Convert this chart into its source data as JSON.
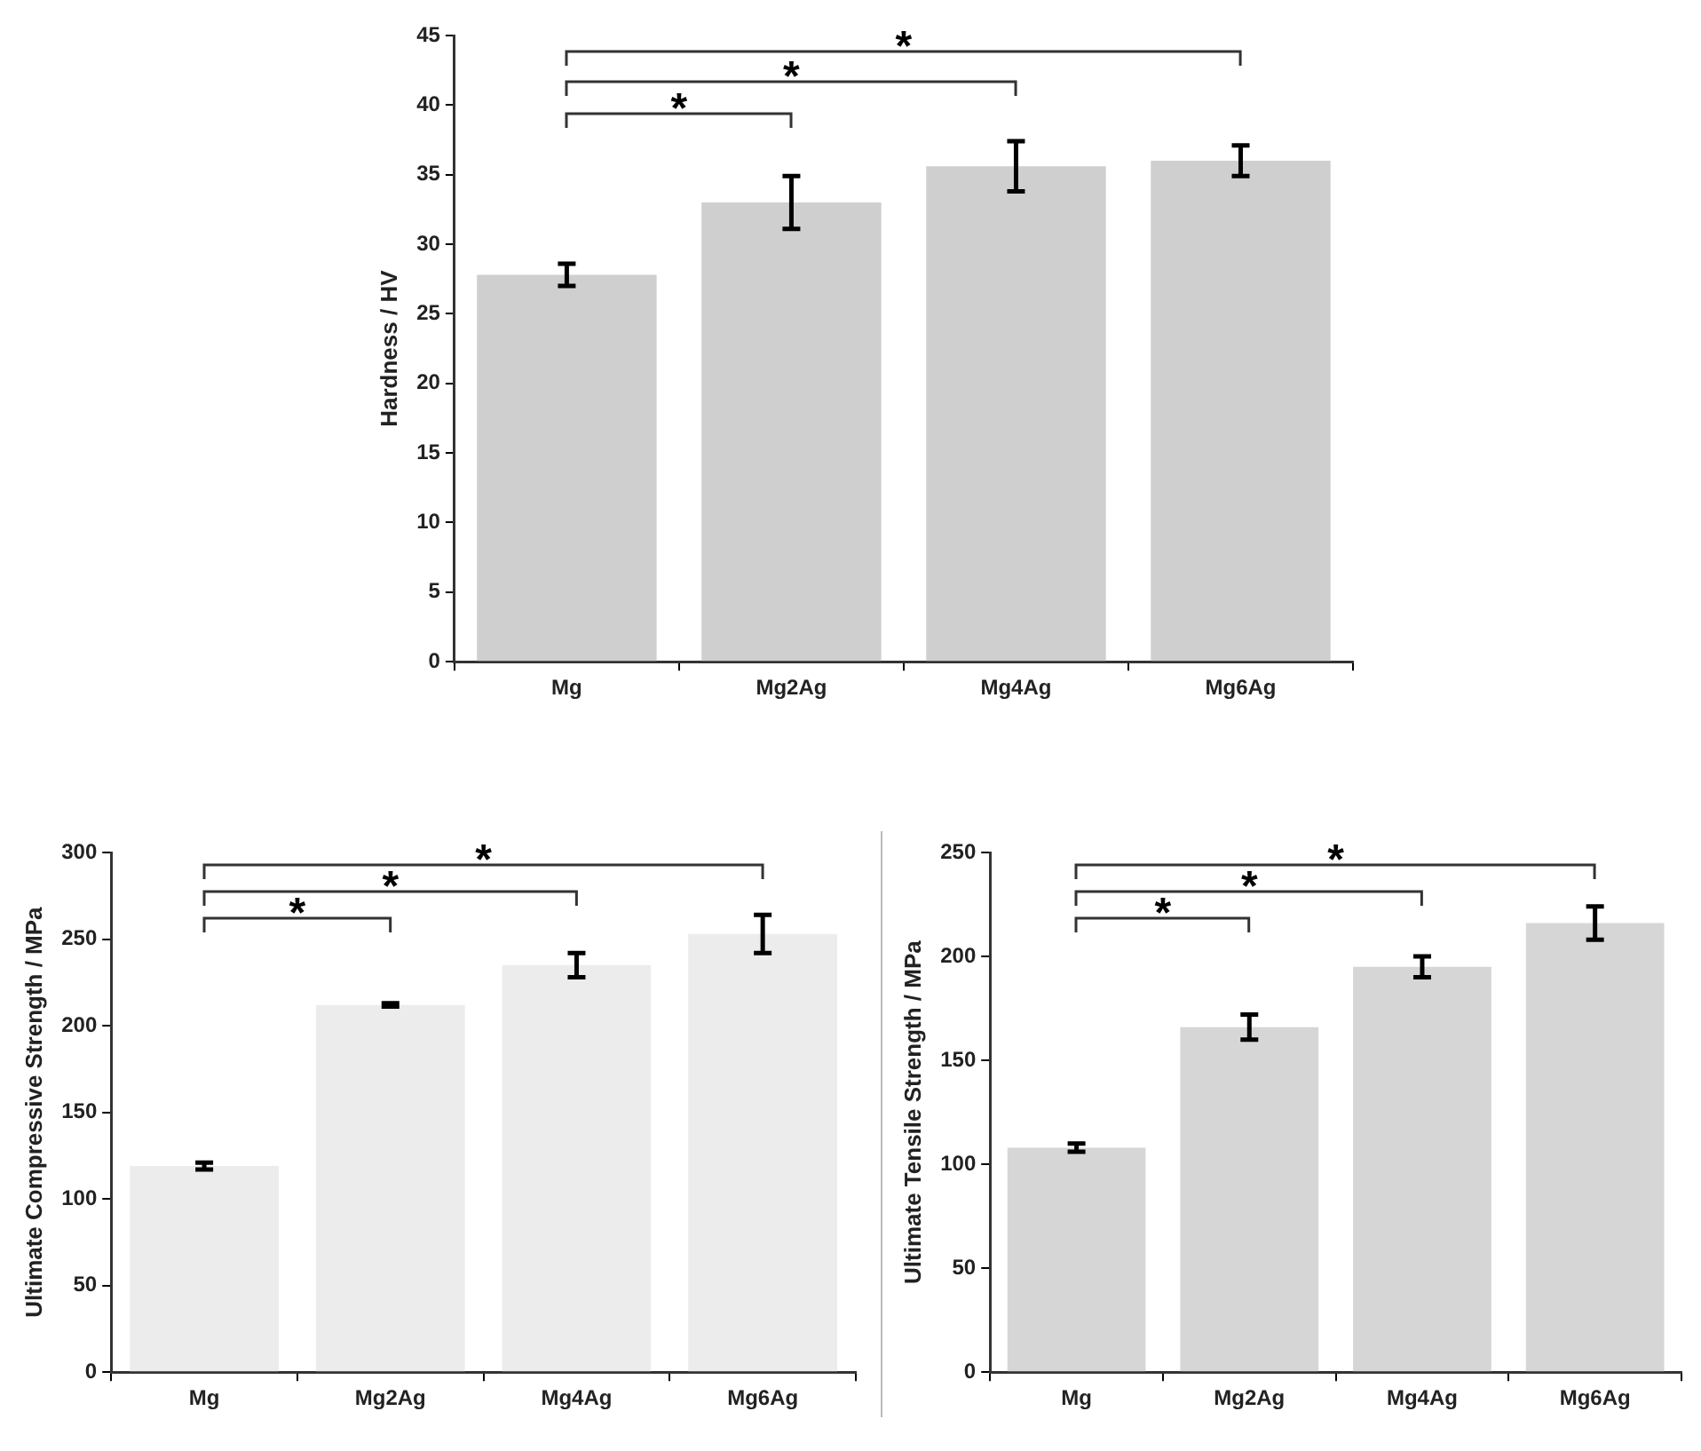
{
  "chart_data": [
    {
      "type": "bar",
      "ylabel": "Hardness / HV",
      "categories": [
        "Mg",
        "Mg2Ag",
        "Mg4Ag",
        "Mg6Ag"
      ],
      "values": [
        27.8,
        33,
        35.6,
        36
      ],
      "errors": [
        0.8,
        1.9,
        1.8,
        1.1
      ],
      "color": "#cfcfcf",
      "ylim": [
        0,
        45
      ],
      "yticks": [
        0,
        5,
        10,
        15,
        20,
        25,
        30,
        35,
        40,
        45
      ],
      "annotations": [
        "*",
        "*",
        "*"
      ]
    },
    {
      "type": "bar",
      "ylabel": "Ultimate Compressive Strength / MPa",
      "categories": [
        "Mg",
        "Mg2Ag",
        "Mg4Ag",
        "Mg6Ag"
      ],
      "values": [
        119,
        212,
        235,
        253
      ],
      "errors": [
        2,
        1,
        7,
        11
      ],
      "color": "#ececec",
      "ylim": [
        0,
        300
      ],
      "yticks": [
        0,
        50,
        100,
        150,
        200,
        250,
        300
      ],
      "annotations": [
        "*",
        "*",
        "*"
      ]
    },
    {
      "type": "bar",
      "ylabel": "Ultimate Tensile Strength / MPa",
      "categories": [
        "Mg",
        "Mg2Ag",
        "Mg4Ag",
        "Mg6Ag"
      ],
      "values": [
        108,
        166,
        195,
        216
      ],
      "errors": [
        2,
        6,
        5,
        8
      ],
      "color": "#d6d6d6",
      "ylim": [
        0,
        250
      ],
      "yticks": [
        0,
        50,
        100,
        150,
        200,
        250
      ],
      "annotations": [
        "*",
        "*",
        "*"
      ]
    }
  ]
}
